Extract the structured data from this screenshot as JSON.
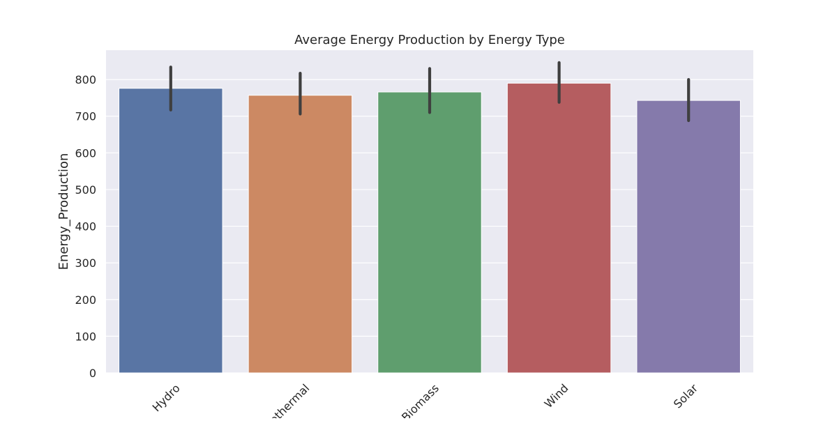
{
  "chart_data": {
    "type": "bar",
    "title": "Average Energy Production by Energy Type",
    "xlabel": "",
    "ylabel": "Energy_Production",
    "categories": [
      "Hydro",
      "Geothermal",
      "Biomass",
      "Wind",
      "Solar"
    ],
    "values": [
      776,
      757,
      766,
      790,
      743
    ],
    "error_bars": [
      {
        "low": 717,
        "high": 834
      },
      {
        "low": 706,
        "high": 817
      },
      {
        "low": 710,
        "high": 830
      },
      {
        "low": 738,
        "high": 846
      },
      {
        "low": 688,
        "high": 800
      }
    ],
    "ylim": [
      0,
      880
    ],
    "yticks": [
      "0",
      "100",
      "200",
      "300",
      "400",
      "500",
      "600",
      "700",
      "800"
    ],
    "grid": true,
    "legend": "none",
    "colors": {
      "background": "#eaeaf2",
      "grid": "#ffffff",
      "error_bar": "#3f3f3f",
      "bars": [
        "#5975a4",
        "#cc8963",
        "#5f9e6e",
        "#b55d60",
        "#857aab"
      ]
    }
  }
}
